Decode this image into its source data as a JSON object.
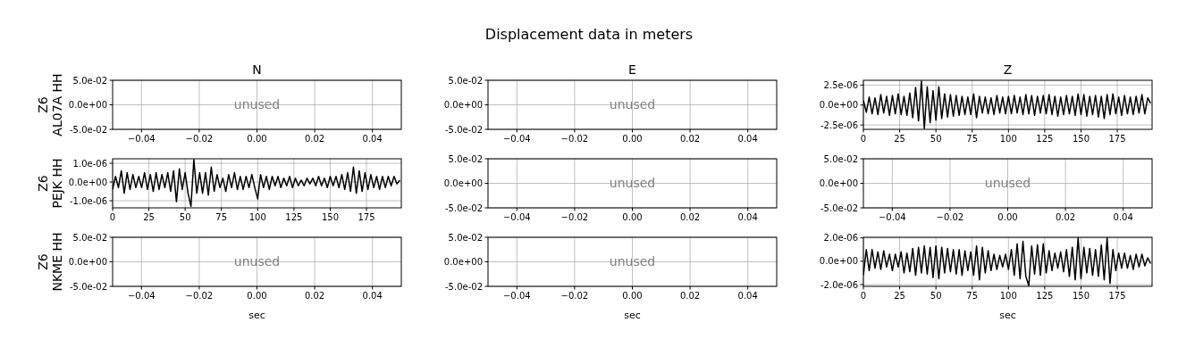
{
  "chart_data": [
    {
      "type": "line",
      "title": "N",
      "ylabel": "Z6\nAL07A HH",
      "grid": true,
      "annotations": [
        "unused"
      ],
      "xlim": [
        -0.05,
        0.05
      ],
      "xticks": [
        {
          "value": -0.04,
          "label": "−0.04"
        },
        {
          "value": -0.02,
          "label": "−0.02"
        },
        {
          "value": 0,
          "label": "0.00"
        },
        {
          "value": 0.02,
          "label": "0.02"
        },
        {
          "value": 0.04,
          "label": "0.04"
        }
      ],
      "ylim": [
        -0.05,
        0.05
      ],
      "yticks": [
        {
          "value": -0.05,
          "label": "-5.0e-02"
        },
        {
          "value": 0,
          "label": "0.0e+00"
        },
        {
          "value": 0.05,
          "label": "5.0e-02"
        }
      ]
    },
    {
      "type": "line",
      "title": "E",
      "grid": true,
      "annotations": [
        "Displacement data in meters",
        "unused"
      ],
      "xlim": [
        -0.05,
        0.05
      ],
      "xticks": [
        {
          "value": -0.04,
          "label": "−0.04"
        },
        {
          "value": -0.02,
          "label": "−0.02"
        },
        {
          "value": 0,
          "label": "0.00"
        },
        {
          "value": 0.02,
          "label": "0.02"
        },
        {
          "value": 0.04,
          "label": "0.04"
        }
      ],
      "ylim": [
        -0.05,
        0.05
      ],
      "yticks": [
        {
          "value": -0.05,
          "label": "-5.0e-02"
        },
        {
          "value": 0,
          "label": "0.0e+00"
        },
        {
          "value": 0.05,
          "label": "5.0e-02"
        }
      ]
    },
    {
      "type": "line",
      "title": "Z",
      "grid": true,
      "xlim": [
        0,
        199
      ],
      "xticks": [
        0,
        25,
        50,
        75,
        100,
        125,
        150,
        175
      ],
      "ylim": [
        -3.05e-06,
        3.1e-06
      ],
      "yticks": [
        {
          "value": -2.5e-06,
          "label": "-2.5e-06"
        },
        {
          "value": 0,
          "label": "0.0e+00"
        },
        {
          "value": 2.5e-06,
          "label": "2.5e-06"
        }
      ],
      "series": [
        {
          "color": "#000000",
          "x": [
            0,
            2,
            4,
            6,
            8,
            10,
            12,
            14,
            16,
            18,
            20,
            22,
            24,
            26,
            28,
            30,
            32,
            34,
            36,
            38,
            40,
            42,
            44,
            46,
            48,
            50,
            52,
            54,
            56,
            58,
            60,
            62,
            64,
            66,
            68,
            70,
            72,
            74,
            76,
            78,
            80,
            82,
            84,
            86,
            88,
            90,
            92,
            94,
            96,
            98,
            100,
            102,
            104,
            106,
            108,
            110,
            112,
            114,
            116,
            118,
            120,
            122,
            124,
            126,
            128,
            130,
            132,
            134,
            136,
            138,
            140,
            142,
            144,
            146,
            148,
            150,
            152,
            154,
            156,
            158,
            160,
            162,
            164,
            166,
            168,
            170,
            172,
            174,
            176,
            178,
            180,
            182,
            184,
            186,
            188,
            190,
            192,
            194,
            196,
            198
          ],
          "values": [
            6e-07,
            -9e-07,
            1e-06,
            -1.1e-06,
            9e-07,
            -1.2e-06,
            1.3e-06,
            -1e-06,
            1.1e-06,
            -1.3e-06,
            1.2e-06,
            -1.1e-06,
            1.4e-06,
            -1.2e-06,
            1.1e-06,
            -1.3e-06,
            1.5e-06,
            -1.6e-06,
            2.2e-06,
            -2e-06,
            3e-06,
            -2.95e-06,
            2.3e-06,
            -2.2e-06,
            1.8e-06,
            -1.9e-06,
            2.3e-06,
            -1.7e-06,
            1.4e-06,
            -1.5e-06,
            1.3e-06,
            -1.4e-06,
            1.2e-06,
            -1.3e-06,
            1.1e-06,
            -1.2e-06,
            1e-06,
            -1.2e-06,
            1.4e-06,
            -1.6e-06,
            1.1e-06,
            -1e-06,
            1e-06,
            -1.1e-06,
            9e-07,
            -1.2e-06,
            1.2e-06,
            -1e-06,
            1e-06,
            -1.1e-06,
            1.1e-06,
            -1.1e-06,
            1.2e-06,
            -1e-06,
            1e-06,
            -1.2e-06,
            1.3e-06,
            -1.1e-06,
            1.2e-06,
            -1.3e-06,
            1.1e-06,
            -1e-06,
            1.2e-06,
            -1.1e-06,
            1.3e-06,
            -1.2e-06,
            1.1e-06,
            -1.4e-06,
            1e-06,
            -1.2e-06,
            1.2e-06,
            -1.1e-06,
            1.1e-06,
            -1.3e-06,
            1.4e-06,
            -1.2e-06,
            1.3e-06,
            -1.4e-06,
            1.1e-06,
            -1.2e-06,
            1.2e-06,
            -1.5e-06,
            1.1e-06,
            -1.7e-06,
            1.3e-06,
            -1.2e-06,
            1.4e-06,
            -1.1e-06,
            1e-06,
            -1.3e-06,
            1.2e-06,
            -1.1e-06,
            1e-06,
            -1.2e-06,
            1.1e-06,
            -1e-06,
            1.3e-06,
            -1.1e-06,
            9e-07,
            2e-07
          ]
        }
      ]
    },
    {
      "type": "line",
      "ylabel": "Z6\nPEJK HH",
      "grid": true,
      "xlim": [
        0,
        199
      ],
      "xticks": [
        0,
        25,
        50,
        75,
        100,
        125,
        150,
        175
      ],
      "ylim": [
        -1.38e-06,
        1.24e-06
      ],
      "yticks": [
        {
          "value": -1e-06,
          "label": "-1.0e-06"
        },
        {
          "value": 0,
          "label": "0.0e+00"
        },
        {
          "value": 1e-06,
          "label": "1.0e-06"
        }
      ],
      "series": [
        {
          "color": "#000000",
          "x": [
            0,
            2,
            4,
            6,
            8,
            10,
            12,
            14,
            16,
            18,
            20,
            22,
            24,
            26,
            28,
            30,
            32,
            34,
            36,
            38,
            40,
            42,
            44,
            46,
            48,
            50,
            52,
            54,
            56,
            58,
            60,
            62,
            64,
            66,
            68,
            70,
            72,
            74,
            76,
            78,
            80,
            82,
            84,
            86,
            88,
            90,
            92,
            94,
            96,
            98,
            100,
            102,
            104,
            106,
            108,
            110,
            112,
            114,
            116,
            118,
            120,
            122,
            124,
            126,
            128,
            130,
            132,
            134,
            136,
            138,
            140,
            142,
            144,
            146,
            148,
            150,
            152,
            154,
            156,
            158,
            160,
            162,
            164,
            166,
            168,
            170,
            172,
            174,
            176,
            178,
            180,
            182,
            184,
            186,
            188,
            190,
            192,
            194,
            196,
            198
          ],
          "values": [
            -4e-07,
            3e-07,
            -3e-07,
            6e-07,
            -6e-07,
            5e-07,
            -4e-07,
            4e-07,
            -3e-07,
            3e-07,
            -3e-07,
            5e-07,
            -4e-07,
            4e-07,
            -5e-07,
            5e-07,
            -4e-07,
            4e-07,
            -3e-07,
            5e-07,
            -5e-07,
            6e-07,
            -1.05e-06,
            7e-07,
            -4e-07,
            5e-07,
            -6e-07,
            -1.3e-06,
            1.2e-06,
            -6e-07,
            5e-07,
            -6e-07,
            5e-07,
            -7e-07,
            8e-07,
            -5e-07,
            4e-07,
            -3e-07,
            2e-07,
            -5e-07,
            4e-07,
            -3e-07,
            5e-07,
            -4e-07,
            3e-07,
            -4e-07,
            3e-07,
            -3e-07,
            4e-07,
            -3e-07,
            -9e-07,
            4e-07,
            -3e-07,
            3e-07,
            -4e-07,
            3e-07,
            -2e-07,
            3e-07,
            -3e-07,
            2e-07,
            -2e-07,
            3e-07,
            -3e-07,
            2e-07,
            -2e-07,
            1e-07,
            -2e-07,
            2e-07,
            -1e-07,
            2e-07,
            -2e-07,
            3e-07,
            -2e-07,
            2e-07,
            -3e-07,
            3e-07,
            -2e-07,
            3e-07,
            -3e-07,
            4e-07,
            -4e-07,
            5e-07,
            -5e-07,
            8e-07,
            -6e-07,
            6e-07,
            -5e-07,
            5e-07,
            -4e-07,
            4e-07,
            -3e-07,
            3e-07,
            -4e-07,
            3e-07,
            -3e-07,
            3e-07,
            -2e-07,
            3e-07,
            -1e-07,
            1e-07
          ]
        }
      ]
    },
    {
      "type": "line",
      "grid": true,
      "annotations": [
        "unused"
      ],
      "xlim": [
        -0.05,
        0.05
      ],
      "xticks": [
        {
          "value": -0.04,
          "label": "−0.04"
        },
        {
          "value": -0.02,
          "label": "−0.02"
        },
        {
          "value": 0,
          "label": "0.00"
        },
        {
          "value": 0.02,
          "label": "0.02"
        },
        {
          "value": 0.04,
          "label": "0.04"
        }
      ],
      "ylim": [
        -0.05,
        0.05
      ],
      "yticks": [
        {
          "value": -0.05,
          "label": "-5.0e-02"
        },
        {
          "value": 0,
          "label": "0.0e+00"
        },
        {
          "value": 0.05,
          "label": "5.0e-02"
        }
      ]
    },
    {
      "type": "line",
      "grid": true,
      "annotations": [
        "unused"
      ],
      "xlim": [
        -0.05,
        0.05
      ],
      "xticks": [
        {
          "value": -0.04,
          "label": "−0.04"
        },
        {
          "value": -0.02,
          "label": "−0.02"
        },
        {
          "value": 0,
          "label": "0.00"
        },
        {
          "value": 0.02,
          "label": "0.02"
        },
        {
          "value": 0.04,
          "label": "0.04"
        }
      ],
      "ylim": [
        -0.05,
        0.05
      ],
      "yticks": [
        {
          "value": -0.05,
          "label": "-5.0e-02"
        },
        {
          "value": 0,
          "label": "0.0e+00"
        },
        {
          "value": 0.05,
          "label": "5.0e-02"
        }
      ]
    },
    {
      "type": "line",
      "ylabel": "Z6\nNKME HH",
      "xlabel": "sec",
      "grid": true,
      "annotations": [
        "unused"
      ],
      "xlim": [
        -0.05,
        0.05
      ],
      "xticks": [
        {
          "value": -0.04,
          "label": "−0.04"
        },
        {
          "value": -0.02,
          "label": "−0.02"
        },
        {
          "value": 0,
          "label": "0.00"
        },
        {
          "value": 0.02,
          "label": "0.02"
        },
        {
          "value": 0.04,
          "label": "0.04"
        }
      ],
      "ylim": [
        -0.05,
        0.05
      ],
      "yticks": [
        {
          "value": -0.05,
          "label": "-5.0e-02"
        },
        {
          "value": 0,
          "label": "0.0e+00"
        },
        {
          "value": 0.05,
          "label": "5.0e-02"
        }
      ]
    },
    {
      "type": "line",
      "xlabel": "sec",
      "grid": true,
      "annotations": [
        "unused"
      ],
      "xlim": [
        -0.05,
        0.05
      ],
      "xticks": [
        {
          "value": -0.04,
          "label": "−0.04"
        },
        {
          "value": -0.02,
          "label": "−0.02"
        },
        {
          "value": 0,
          "label": "0.00"
        },
        {
          "value": 0.02,
          "label": "0.02"
        },
        {
          "value": 0.04,
          "label": "0.04"
        }
      ],
      "ylim": [
        -0.05,
        0.05
      ],
      "yticks": [
        {
          "value": -0.05,
          "label": "-5.0e-02"
        },
        {
          "value": 0,
          "label": "0.0e+00"
        },
        {
          "value": 0.05,
          "label": "5.0e-02"
        }
      ]
    },
    {
      "type": "line",
      "xlabel": "sec",
      "grid": true,
      "xlim": [
        0,
        199
      ],
      "xticks": [
        0,
        25,
        50,
        75,
        100,
        125,
        150,
        175
      ],
      "ylim": [
        -2.15e-06,
        2.05e-06
      ],
      "yticks": [
        {
          "value": -2e-06,
          "label": "-2.0e-06"
        },
        {
          "value": 0,
          "label": "0.0e+00"
        },
        {
          "value": 2e-06,
          "label": "2.0e-06"
        }
      ],
      "series": [
        {
          "color": "#000000",
          "x": [
            0,
            2,
            4,
            6,
            8,
            10,
            12,
            14,
            16,
            18,
            20,
            22,
            24,
            26,
            28,
            30,
            32,
            34,
            36,
            38,
            40,
            42,
            44,
            46,
            48,
            50,
            52,
            54,
            56,
            58,
            60,
            62,
            64,
            66,
            68,
            70,
            72,
            74,
            76,
            78,
            80,
            82,
            84,
            86,
            88,
            90,
            92,
            94,
            96,
            98,
            100,
            102,
            104,
            106,
            108,
            110,
            112,
            114,
            116,
            118,
            120,
            122,
            124,
            126,
            128,
            130,
            132,
            134,
            136,
            138,
            140,
            142,
            144,
            146,
            148,
            150,
            152,
            154,
            156,
            158,
            160,
            162,
            164,
            166,
            168,
            170,
            172,
            174,
            176,
            178,
            180,
            182,
            184,
            186,
            188,
            190,
            192,
            194,
            196,
            198
          ],
          "values": [
            -1.2e-06,
            1e-06,
            -8e-07,
            1e-06,
            -6e-07,
            8e-07,
            -7e-07,
            9e-07,
            -5e-07,
            6e-07,
            -8e-07,
            6e-07,
            -5e-07,
            8e-07,
            -1e-06,
            7e-07,
            -9e-07,
            1.1e-06,
            -1.2e-06,
            1.2e-06,
            -1e-06,
            1.3e-06,
            -1.1e-06,
            1.2e-06,
            -1.4e-06,
            1.3e-06,
            -1.5e-06,
            1.2e-06,
            -1e-06,
            1.1e-06,
            -9e-07,
            1e-06,
            -1.1e-06,
            1e-06,
            -1.2e-06,
            9e-07,
            -8e-07,
            8e-07,
            -1.2e-06,
            1.3e-06,
            -1.6e-06,
            1.2e-06,
            -1e-06,
            9e-07,
            -8e-07,
            6e-07,
            -7e-07,
            5e-07,
            -5e-07,
            6e-07,
            -7e-07,
            1e-06,
            -1.2e-06,
            1.5e-06,
            -1.5e-06,
            1.7e-06,
            -1.3e-06,
            -2.1e-06,
            1.3e-06,
            -1.1e-06,
            1.4e-06,
            -1.2e-06,
            1.5e-06,
            -1e-06,
            9e-07,
            -8e-07,
            7e-07,
            -6e-07,
            8e-07,
            -9e-07,
            1e-06,
            -1.3e-06,
            1.2e-06,
            -1.6e-06,
            2e-06,
            -1.5e-06,
            1.2e-06,
            -1e-06,
            1.1e-06,
            -1.2e-06,
            1e-06,
            -1.3e-06,
            1.4e-06,
            -1.6e-06,
            2e-06,
            -1.9e-06,
            1e-06,
            -8e-07,
            7e-07,
            -6e-07,
            7e-07,
            -6e-07,
            5e-07,
            -7e-07,
            6e-07,
            -5e-07,
            6e-07,
            -4e-07,
            3e-07,
            -2e-07
          ]
        }
      ]
    }
  ]
}
